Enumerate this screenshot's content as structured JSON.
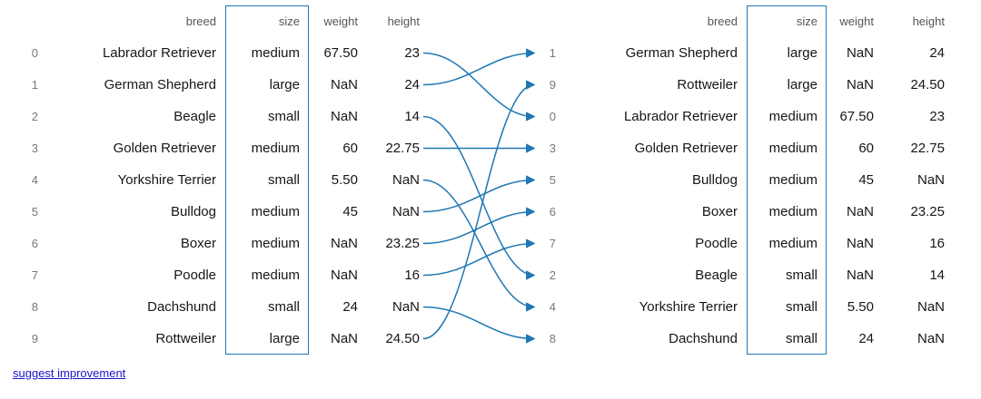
{
  "columns": [
    "breed",
    "size",
    "weight",
    "height"
  ],
  "highlighted_column": "size",
  "colors": {
    "arrow": "#1f77b4",
    "highlight_border": "#1f77b4",
    "link": "#1a16c9"
  },
  "left_table": {
    "rows": [
      {
        "index": "0",
        "breed": "Labrador Retriever",
        "size": "medium",
        "weight": "67.50",
        "height": "23"
      },
      {
        "index": "1",
        "breed": "German Shepherd",
        "size": "large",
        "weight": "NaN",
        "height": "24"
      },
      {
        "index": "2",
        "breed": "Beagle",
        "size": "small",
        "weight": "NaN",
        "height": "14"
      },
      {
        "index": "3",
        "breed": "Golden Retriever",
        "size": "medium",
        "weight": "60",
        "height": "22.75"
      },
      {
        "index": "4",
        "breed": "Yorkshire Terrier",
        "size": "small",
        "weight": "5.50",
        "height": "NaN"
      },
      {
        "index": "5",
        "breed": "Bulldog",
        "size": "medium",
        "weight": "45",
        "height": "NaN"
      },
      {
        "index": "6",
        "breed": "Boxer",
        "size": "medium",
        "weight": "NaN",
        "height": "23.25"
      },
      {
        "index": "7",
        "breed": "Poodle",
        "size": "medium",
        "weight": "NaN",
        "height": "16"
      },
      {
        "index": "8",
        "breed": "Dachshund",
        "size": "small",
        "weight": "24",
        "height": "NaN"
      },
      {
        "index": "9",
        "breed": "Rottweiler",
        "size": "large",
        "weight": "NaN",
        "height": "24.50"
      }
    ]
  },
  "right_table": {
    "rows": [
      {
        "index": "1",
        "breed": "German Shepherd",
        "size": "large",
        "weight": "NaN",
        "height": "24"
      },
      {
        "index": "9",
        "breed": "Rottweiler",
        "size": "large",
        "weight": "NaN",
        "height": "24.50"
      },
      {
        "index": "0",
        "breed": "Labrador Retriever",
        "size": "medium",
        "weight": "67.50",
        "height": "23"
      },
      {
        "index": "3",
        "breed": "Golden Retriever",
        "size": "medium",
        "weight": "60",
        "height": "22.75"
      },
      {
        "index": "5",
        "breed": "Bulldog",
        "size": "medium",
        "weight": "45",
        "height": "NaN"
      },
      {
        "index": "6",
        "breed": "Boxer",
        "size": "medium",
        "weight": "NaN",
        "height": "23.25"
      },
      {
        "index": "7",
        "breed": "Poodle",
        "size": "medium",
        "weight": "NaN",
        "height": "16"
      },
      {
        "index": "2",
        "breed": "Beagle",
        "size": "small",
        "weight": "NaN",
        "height": "14"
      },
      {
        "index": "4",
        "breed": "Yorkshire Terrier",
        "size": "small",
        "weight": "5.50",
        "height": "NaN"
      },
      {
        "index": "8",
        "breed": "Dachshund",
        "size": "small",
        "weight": "24",
        "height": "NaN"
      }
    ]
  },
  "mapping": [
    2,
    0,
    7,
    3,
    8,
    4,
    5,
    6,
    9,
    1
  ],
  "footer": {
    "link_label": "suggest improvement"
  }
}
